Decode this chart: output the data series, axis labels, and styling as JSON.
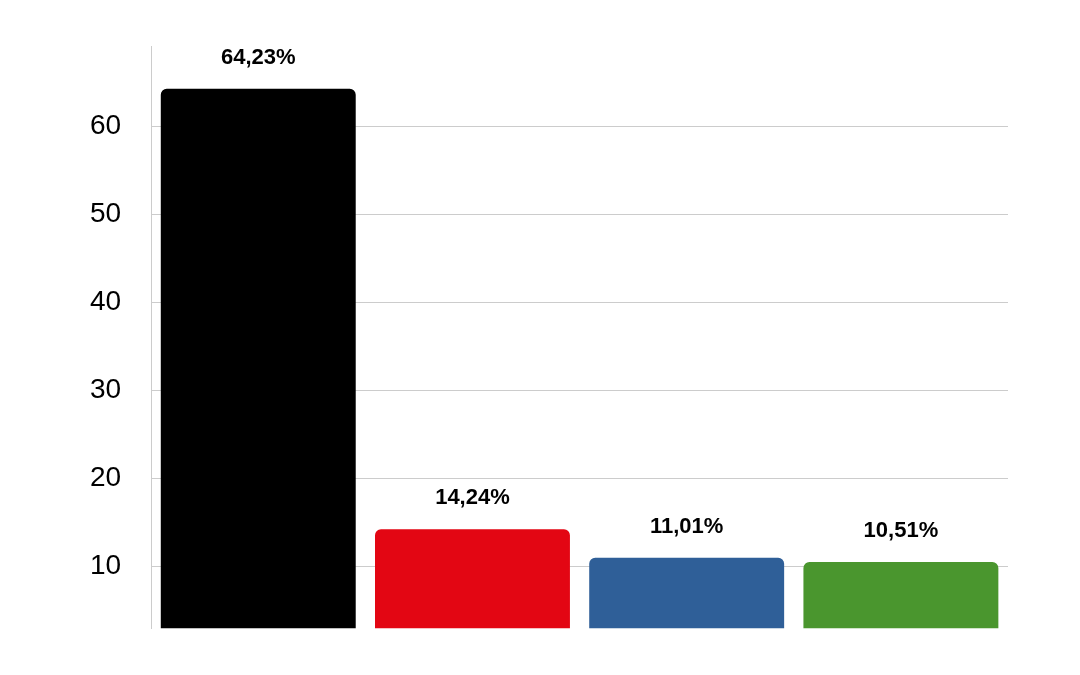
{
  "chart_data": {
    "type": "bar",
    "categories": [
      null,
      null,
      null,
      null
    ],
    "values": [
      64.23,
      14.24,
      11.01,
      10.51
    ],
    "colors": [
      "#000000",
      "#e30613",
      "#2f5f98",
      "#4a962e"
    ],
    "value_labels": [
      "64,23%",
      "14,24%",
      "11,01%",
      "10,51%"
    ],
    "ylim": [
      3,
      69
    ],
    "yticks": [
      10,
      20,
      30,
      40,
      50,
      60
    ],
    "grid": "y",
    "legend": false
  }
}
